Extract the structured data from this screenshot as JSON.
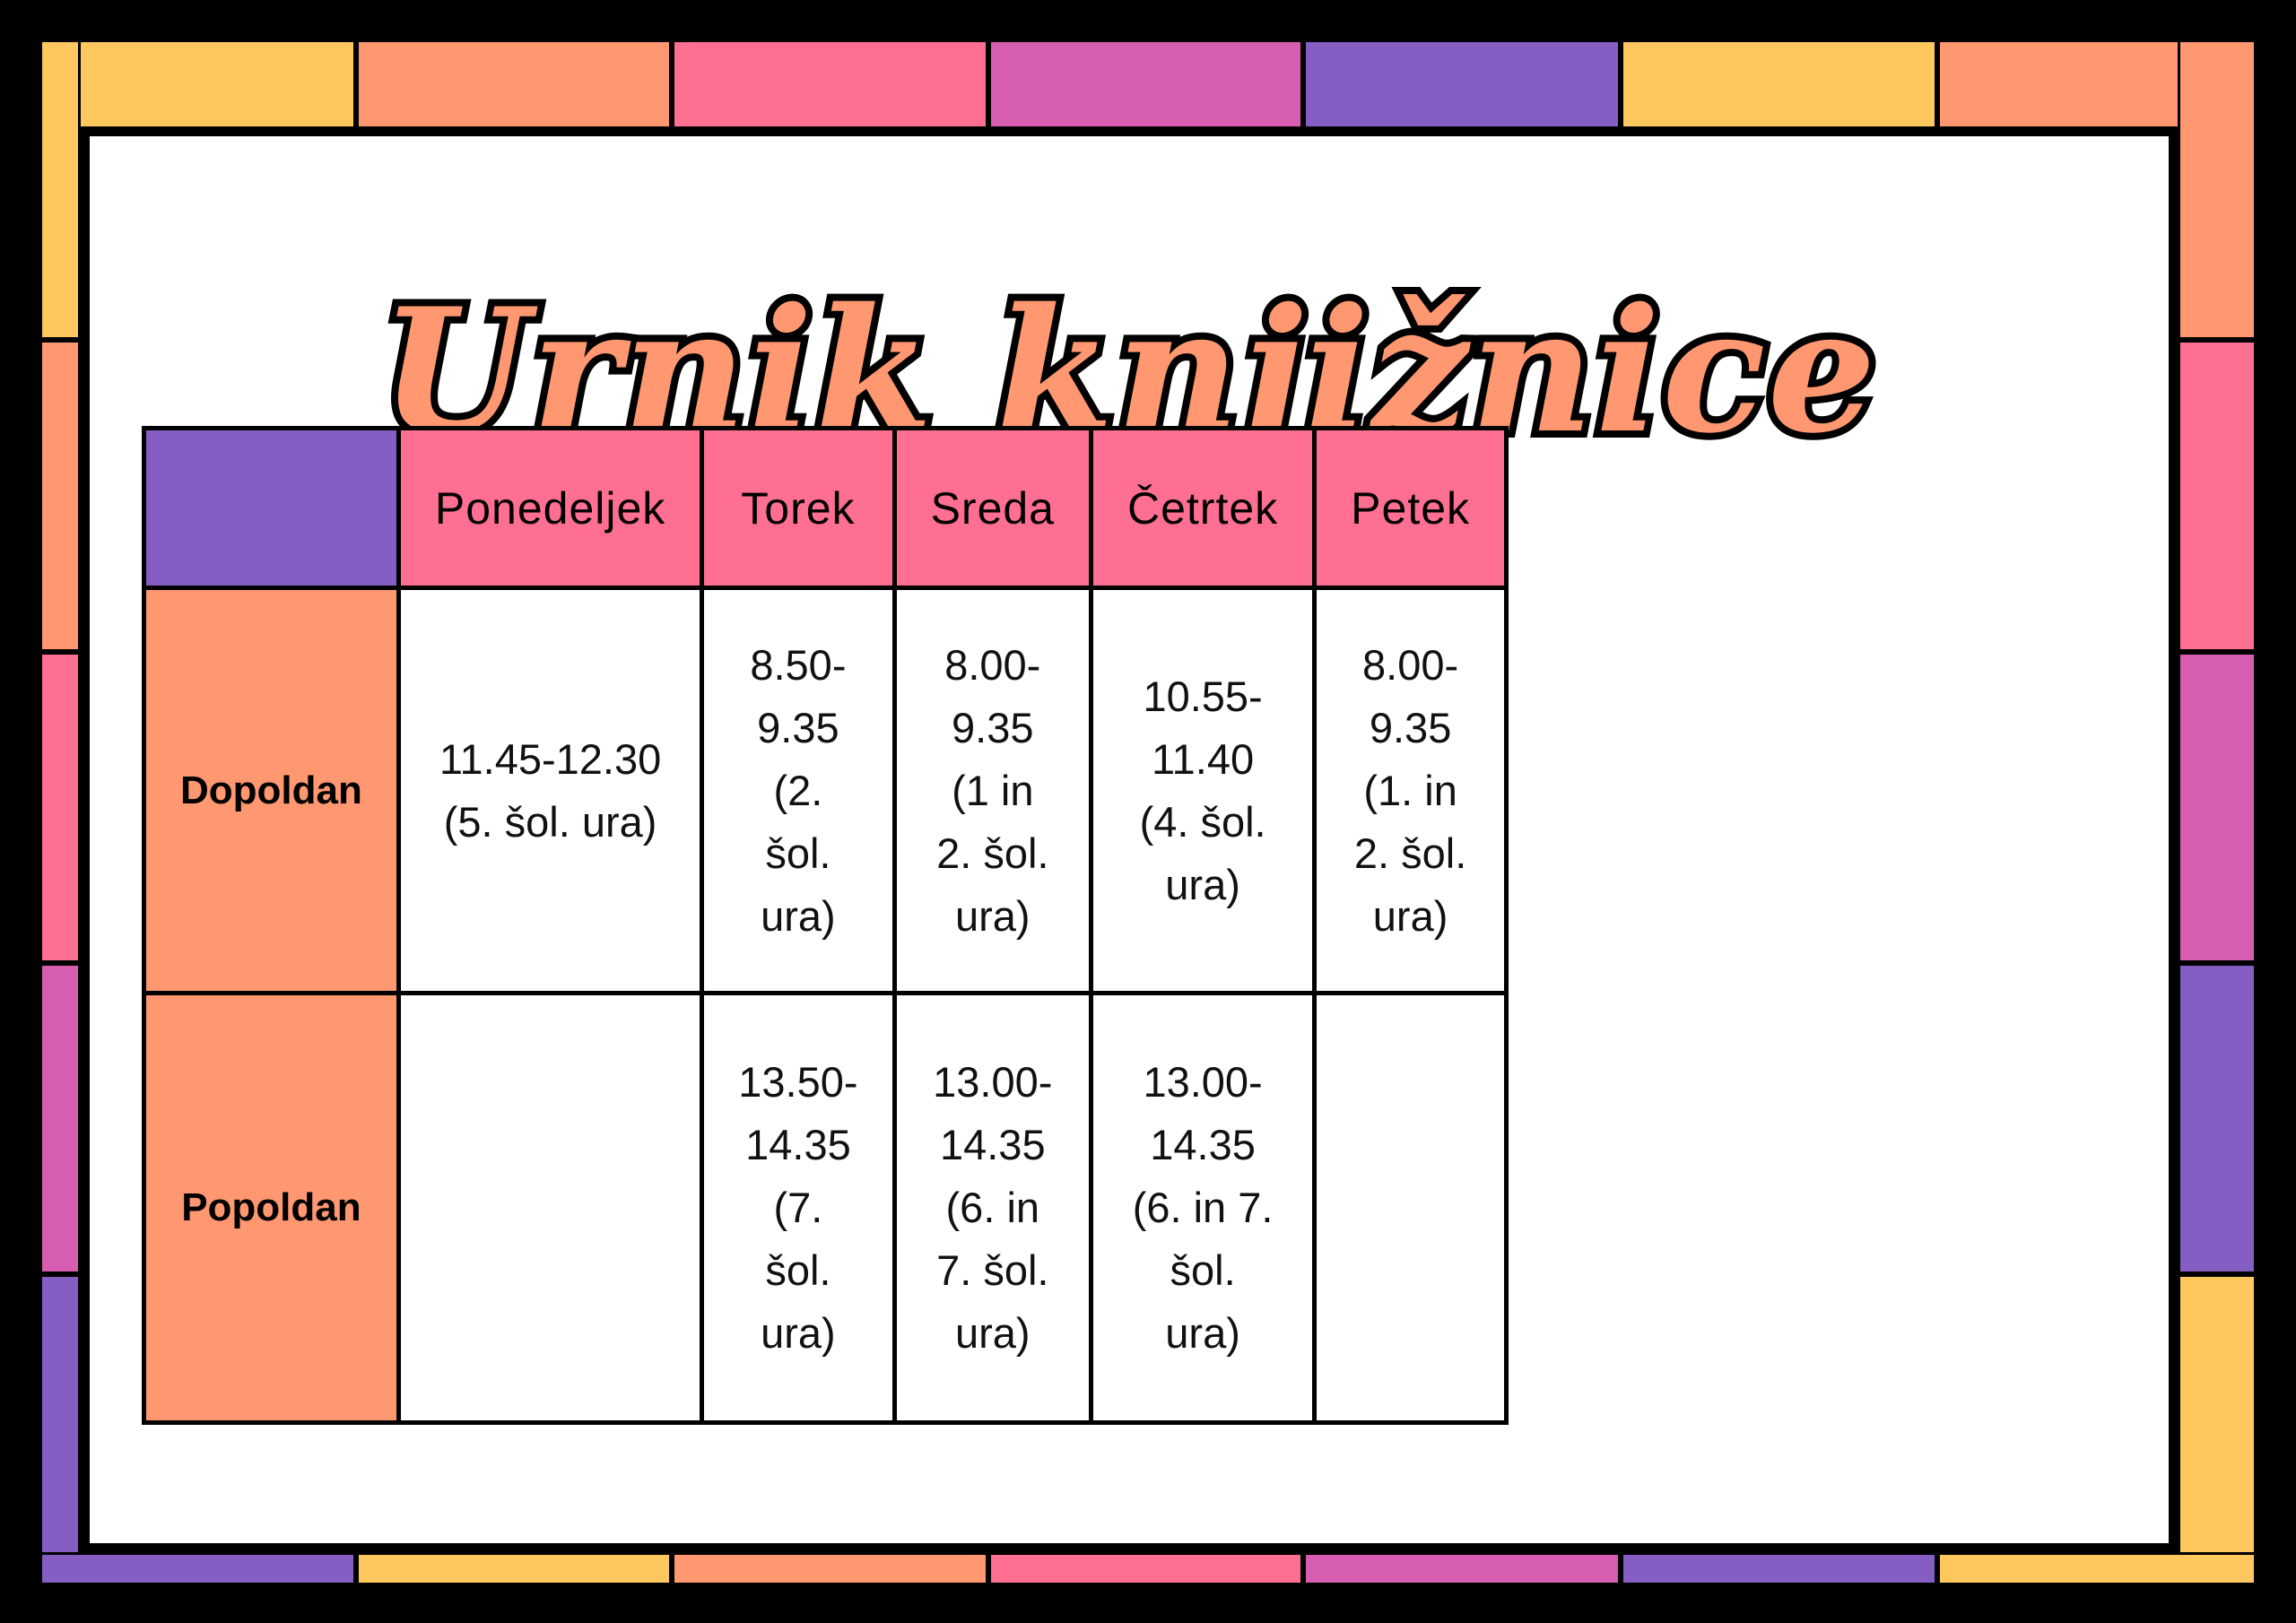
{
  "title": "Urnik knjižnice",
  "palette": {
    "yellow": "#FEC85E",
    "orange": "#FF9770",
    "pink": "#FF6F91",
    "magenta": "#D65DB1",
    "purple": "#845EC2"
  },
  "table": {
    "days": [
      "Ponedeljek",
      "Torek",
      "Sreda",
      "Četrtek",
      "Petek"
    ],
    "rows": [
      {
        "label": "Dopoldan",
        "cells": [
          "11.45-12.30\n(5. šol. ura)",
          "8.50-9.35\n(2. šol. ura)",
          "8.00-9.35\n(1 in 2. šol. ura)",
          "10.55-11.40\n(4. šol. ura)",
          "8.00-9.35\n(1. in 2. šol. ura)"
        ]
      },
      {
        "label": "Popoldan",
        "cells": [
          "",
          "13.50-14.35\n(7. šol. ura)",
          "13.00-14.35\n(6. in 7. šol. ura)",
          "13.00-14.35\n(6. in 7. šol. ura)",
          ""
        ]
      }
    ]
  }
}
